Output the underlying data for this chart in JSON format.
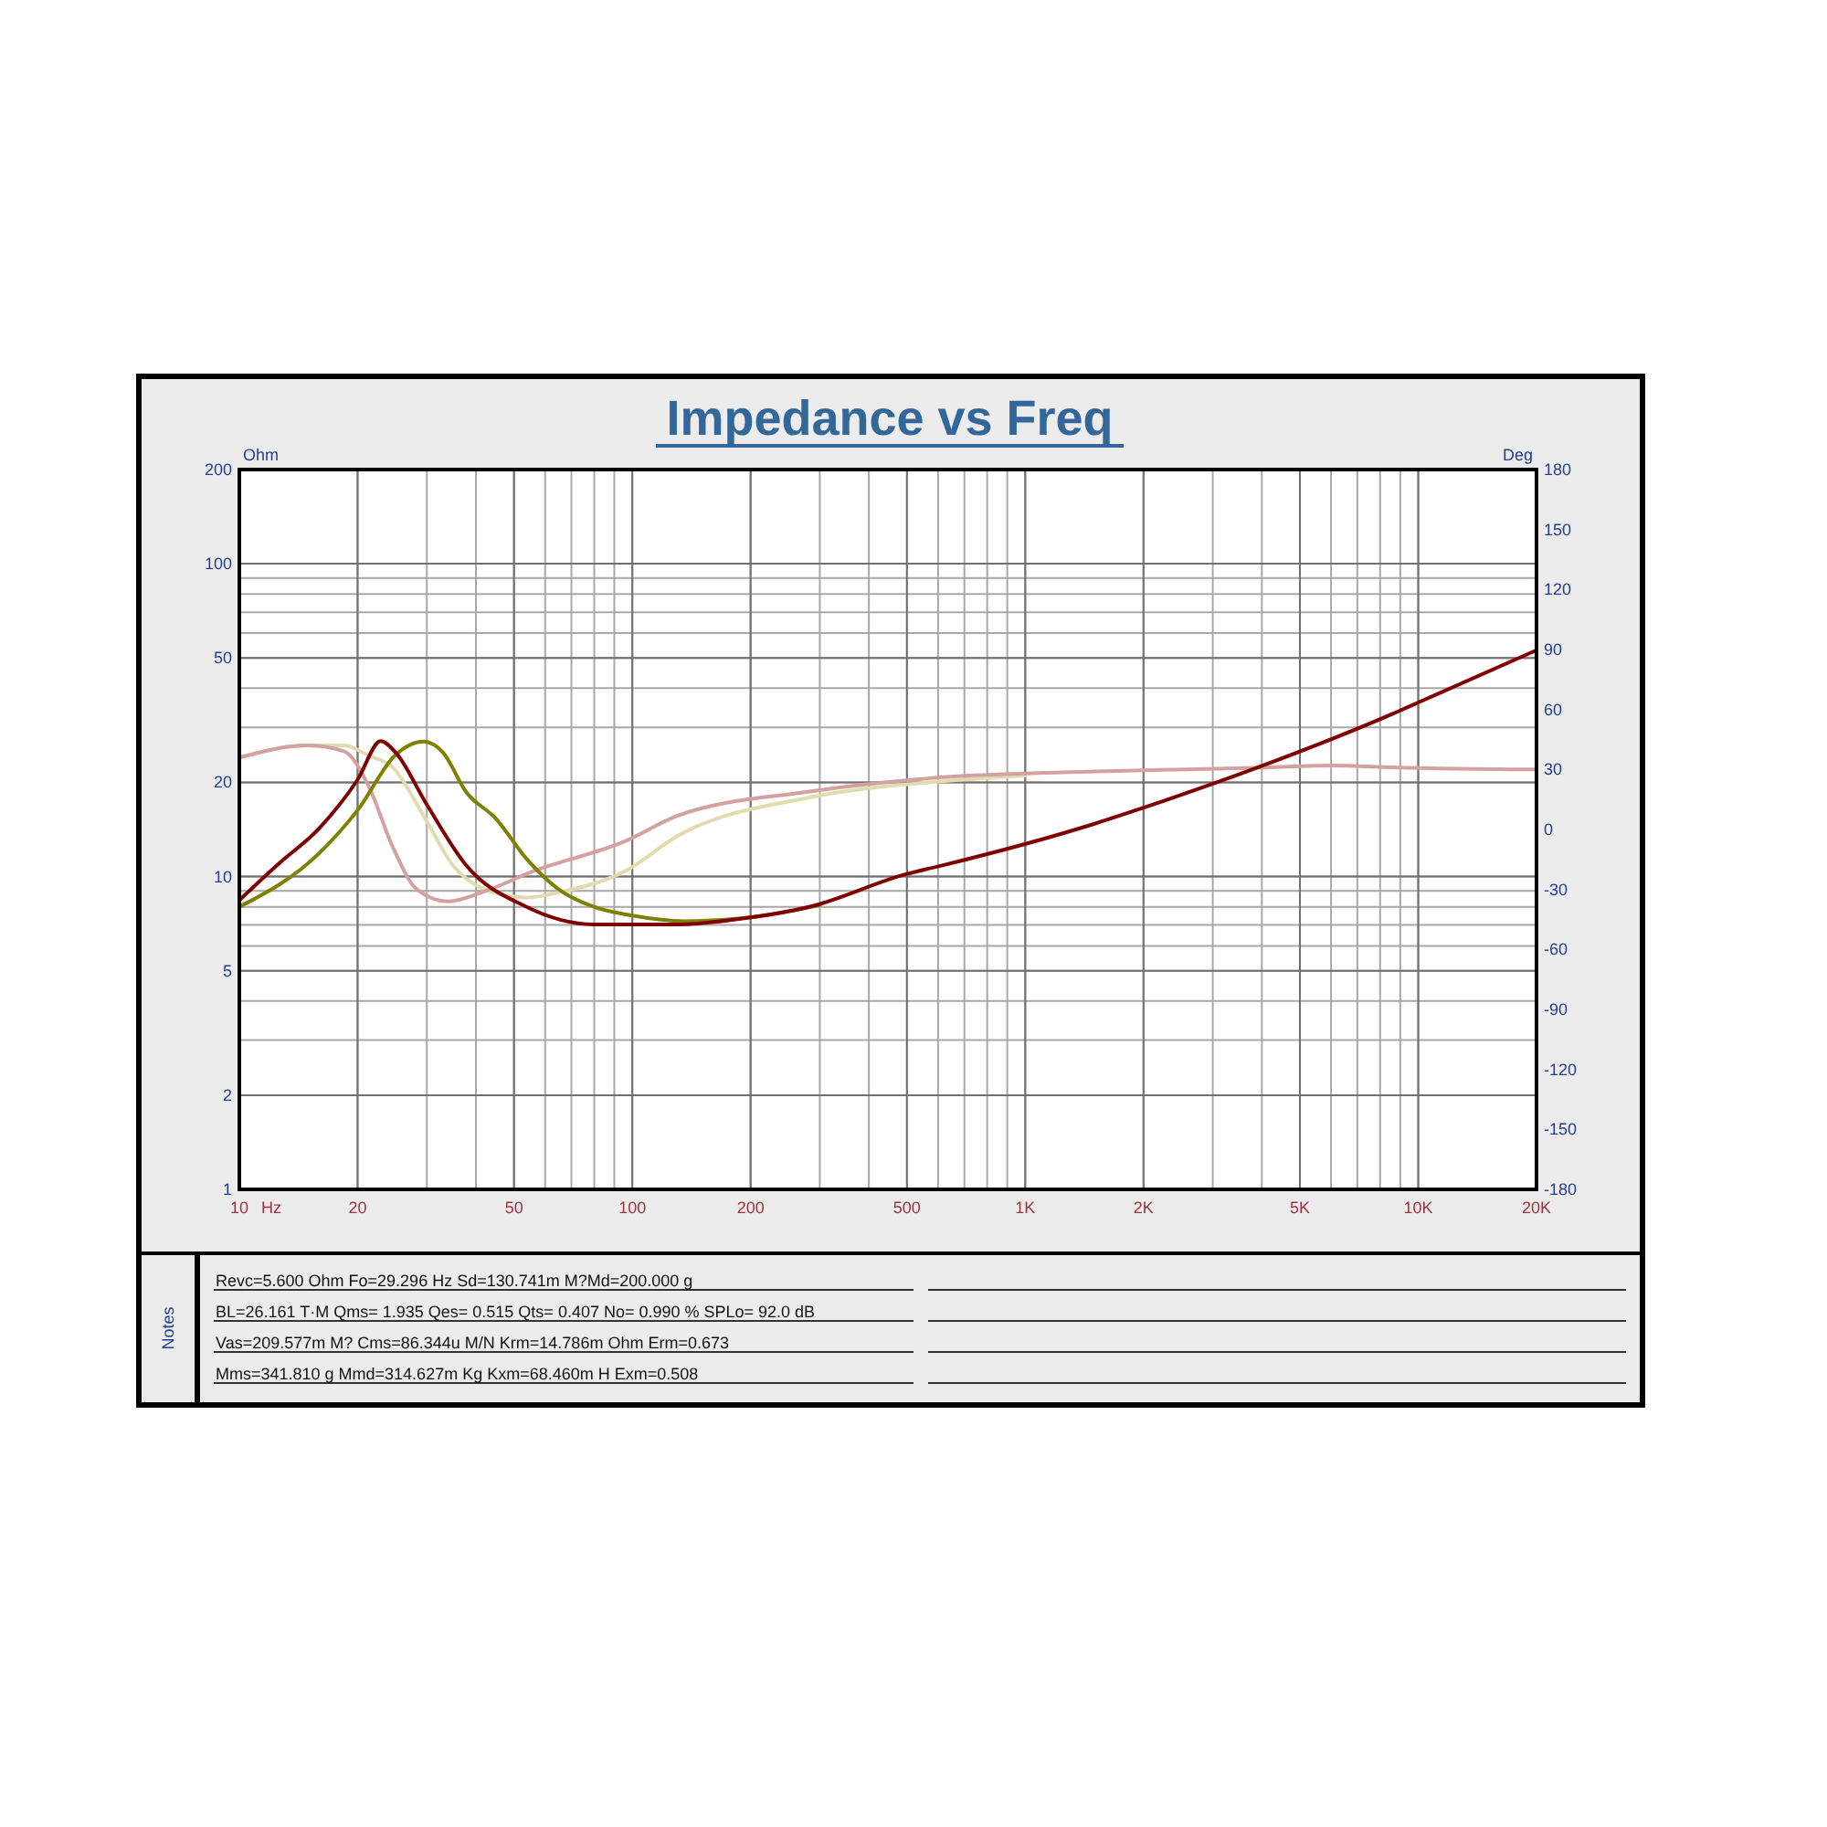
{
  "chart_data": {
    "type": "line",
    "title": "Impedance vs Freq",
    "xlabel": "Hz",
    "ylabel": "Ohm",
    "y2label": "Deg",
    "log": "xy",
    "grid": true,
    "xlim": [
      10,
      20000
    ],
    "xticks": [
      10,
      20,
      50,
      100,
      200,
      500,
      {
        "value": 1000,
        "label": "1K"
      },
      {
        "value": 2000,
        "label": "2K"
      },
      {
        "value": 5000,
        "label": "5K"
      },
      {
        "value": 10000,
        "label": "10K"
      },
      {
        "value": 20000,
        "label": "20K"
      }
    ],
    "ylim": [
      1,
      200
    ],
    "yticks": [
      1,
      2,
      5,
      10,
      20,
      50,
      100,
      200
    ],
    "y2lim": [
      -180,
      180
    ],
    "y2ticks": [
      -180,
      -150,
      -120,
      -90,
      -60,
      -30,
      0,
      30,
      60,
      90,
      120,
      150,
      180
    ],
    "series": [
      {
        "color": "#e0dcb0",
        "axis": "y2",
        "x": [
          10,
          14.9,
          18.5,
          21.3,
          24.6,
          29.4,
          35,
          43.5,
          53.8,
          66.7,
          95.5,
          131,
          282,
          605,
          1000
        ],
        "values": [
          36,
          42,
          42,
          37,
          31,
          7,
          -18,
          -31,
          -34,
          -31,
          -21,
          -3,
          16,
          24,
          27
        ]
      },
      {
        "color": "#d4a0a0",
        "axis": "y2",
        "x": [
          10,
          14.9,
          18.5,
          21.3,
          24.6,
          28.3,
          33.9,
          42,
          55.8,
          95.5,
          131,
          282,
          605,
          1514,
          4090,
          6000,
          8790,
          20000
        ],
        "values": [
          36,
          42,
          39,
          22,
          -9,
          -30,
          -36,
          -31,
          -21,
          -6,
          7,
          19,
          26,
          29,
          31,
          32,
          31,
          30
        ]
      },
      {
        "color": "#808000",
        "x": [
          10,
          16,
          20,
          25,
          29.4,
          33,
          37.7,
          45,
          53.8,
          65,
          79.8,
          100,
          136,
          200,
          300
        ],
        "values": [
          8,
          11.9,
          16.3,
          24.5,
          27,
          24.9,
          18.7,
          15.3,
          11.4,
          9.1,
          8,
          7.5,
          7.2,
          7.4,
          8.1
        ]
      },
      {
        "color": "#800000",
        "x": [
          10,
          12.5,
          16,
          20,
          22.9,
          25,
          29.9,
          37.7,
          53.8,
          79.8,
          131,
          200,
          282,
          500,
          605,
          1514,
          2000,
          4090,
          8790,
          10000,
          20000
        ],
        "values": [
          8.4,
          10.9,
          14.3,
          20.4,
          27.1,
          24.9,
          17.1,
          10.9,
          8,
          7.03,
          7.03,
          7.4,
          8,
          10.2,
          10.8,
          14.8,
          16.6,
          22.8,
          33.5,
          36,
          52.9
        ]
      }
    ],
    "annotations": [
      "Notes",
      "Revc=5.600 Ohm  Fo=29.296 Hz  Sd=130.741m M?Md=200.000 g",
      "BL=26.161 T·M  Qms= 1.935  Qes= 0.515  Qts= 0.407  No= 0.990 %  SPLo= 92.0 dB",
      "Vas=209.577m M? Cms=86.344u M/N  Krm=14.786m Ohm  Erm=0.673",
      "Mms=341.810 g  Mmd=314.627m Kg  Kxm=68.460m H  Exm=0.508"
    ]
  }
}
